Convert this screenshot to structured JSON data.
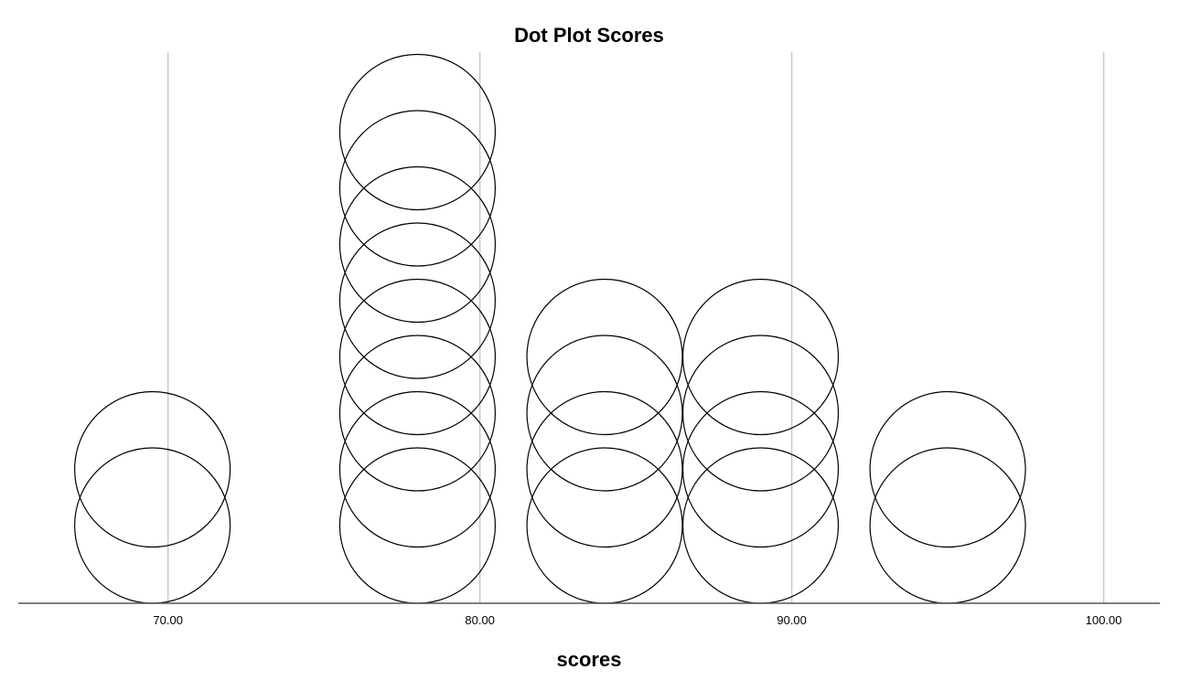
{
  "chart_data": {
    "type": "scatter",
    "title": "Dot Plot Scores",
    "xlabel": "scores",
    "ylabel": "",
    "xlim": [
      65.2,
      101.8
    ],
    "xticks": [
      70,
      80,
      90,
      100
    ],
    "xtick_labels": [
      "70.00",
      "80.00",
      "90.00",
      "100.00"
    ],
    "grid": true,
    "stacks": [
      {
        "x": 69.5,
        "count": 2
      },
      {
        "x": 78.0,
        "count": 8
      },
      {
        "x": 84.0,
        "count": 4
      },
      {
        "x": 89.0,
        "count": 4
      },
      {
        "x": 95.0,
        "count": 2
      }
    ]
  }
}
